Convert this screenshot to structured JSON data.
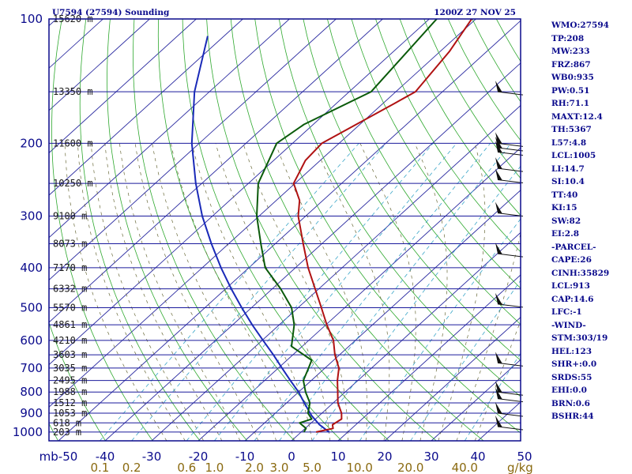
{
  "header": {
    "station": "U7594 (27594) Sounding",
    "time": "1200Z 27 NOV 25"
  },
  "stats": [
    "WMO:27594",
    "TP:208",
    "MW:233",
    "FRZ:867",
    "WB0:935",
    "PW:0.51",
    "RH:71.1",
    "MAXT:12.4",
    "TH:5367",
    "L57:4.8",
    "LCL:1005",
    "LI:14.7",
    "SI:10.4",
    "TT:40",
    "KI:15",
    "SW:82",
    "EI:2.8",
    "-PARCEL-",
    "CAPE:26",
    "CINH:35829",
    "LCL:913",
    "CAP:14.6",
    "LFC:-1",
    "-WIND-",
    "STM:303/19",
    "HEL:123",
    "SHR+:0.0",
    "SRDS:55",
    "EHI:0.0",
    "BRN:0.6",
    "BSHR:44"
  ],
  "colors": {
    "axis": "#0a0a8c",
    "isobar": "#1a1a9c",
    "temperature": "#b01212",
    "dewpoint": "#0a5a0a",
    "parcel": "#1a2ab8",
    "dry_adiabat": "#2ea82e",
    "isotherm": "#2a2aa0",
    "mixing_ratio": "#3aa6c8",
    "moist_adiabat": "#6a6a3a",
    "mixing_label": "#8a6a10"
  },
  "chart_data": {
    "type": "skew-t",
    "y_axis": {
      "scale": "log-pressure",
      "unit": "mb",
      "ticks": [
        100,
        200,
        300,
        400,
        500,
        600,
        700,
        800,
        900,
        1000
      ]
    },
    "x_axis": {
      "unit": "C",
      "ticks": [
        -50,
        -40,
        -30,
        -20,
        -10,
        0,
        10,
        20,
        30,
        40,
        50
      ],
      "tick_labels": [
        "mb-50",
        "-40",
        "-30",
        "-20",
        "-10",
        "0",
        "10",
        "20",
        "30",
        "40",
        "50"
      ]
    },
    "mixing_ratio_labels": {
      "unit": "g/kg",
      "labels": [
        "0.1",
        "0.2",
        "0.6",
        "1.0",
        "2.0",
        "3.0",
        "5.0",
        "10.0",
        "20.0",
        "40.0"
      ]
    },
    "heights": [
      {
        "p": 100,
        "label": "15620 m"
      },
      {
        "p": 150,
        "label": "13350 m"
      },
      {
        "p": 200,
        "label": "11600 m"
      },
      {
        "p": 250,
        "label": "10250 m"
      },
      {
        "p": 300,
        "label": "9100 m"
      },
      {
        "p": 350,
        "label": "8073 m"
      },
      {
        "p": 400,
        "label": "7170 m"
      },
      {
        "p": 450,
        "label": "6332 m"
      },
      {
        "p": 500,
        "label": "5570 m"
      },
      {
        "p": 550,
        "label": "4861 m"
      },
      {
        "p": 600,
        "label": "4210 m"
      },
      {
        "p": 650,
        "label": "3603 m"
      },
      {
        "p": 700,
        "label": "3035 m"
      },
      {
        "p": 750,
        "label": "2495 m"
      },
      {
        "p": 800,
        "label": "1988 m"
      },
      {
        "p": 850,
        "label": "1512 m"
      },
      {
        "p": 900,
        "label": "1053 m"
      },
      {
        "p": 950,
        "label": "618 m"
      },
      {
        "p": 1000,
        "label": "203 m"
      }
    ],
    "temperature": [
      {
        "p": 1000,
        "t": 3.2
      },
      {
        "p": 980,
        "t": 6.0
      },
      {
        "p": 960,
        "t": 5.0
      },
      {
        "p": 930,
        "t": 5.6
      },
      {
        "p": 900,
        "t": 4.2
      },
      {
        "p": 850,
        "t": 1.0
      },
      {
        "p": 800,
        "t": -1.6
      },
      {
        "p": 750,
        "t": -4.4
      },
      {
        "p": 700,
        "t": -7.0
      },
      {
        "p": 650,
        "t": -11.0
      },
      {
        "p": 600,
        "t": -14.7
      },
      {
        "p": 550,
        "t": -19.8
      },
      {
        "p": 500,
        "t": -25.0
      },
      {
        "p": 450,
        "t": -30.8
      },
      {
        "p": 400,
        "t": -37.3
      },
      {
        "p": 350,
        "t": -44.0
      },
      {
        "p": 300,
        "t": -51.6
      },
      {
        "p": 275,
        "t": -55.0
      },
      {
        "p": 250,
        "t": -60.3
      },
      {
        "p": 220,
        "t": -63.2
      },
      {
        "p": 200,
        "t": -63.7
      },
      {
        "p": 160,
        "t": -57.5
      },
      {
        "p": 150,
        "t": -55.8
      },
      {
        "p": 120,
        "t": -58.0
      },
      {
        "p": 100,
        "t": -60.9
      }
    ],
    "dewpoint": [
      {
        "p": 1000,
        "t": 0.6
      },
      {
        "p": 980,
        "t": 0.2
      },
      {
        "p": 950,
        "t": -2.5
      },
      {
        "p": 930,
        "t": -0.8
      },
      {
        "p": 900,
        "t": -3.0
      },
      {
        "p": 850,
        "t": -5.0
      },
      {
        "p": 800,
        "t": -8.5
      },
      {
        "p": 750,
        "t": -11.7
      },
      {
        "p": 700,
        "t": -13.5
      },
      {
        "p": 670,
        "t": -14.7
      },
      {
        "p": 620,
        "t": -22.3
      },
      {
        "p": 550,
        "t": -26.8
      },
      {
        "p": 500,
        "t": -31.4
      },
      {
        "p": 450,
        "t": -38.2
      },
      {
        "p": 400,
        "t": -46.5
      },
      {
        "p": 350,
        "t": -53.1
      },
      {
        "p": 300,
        "t": -60.5
      },
      {
        "p": 250,
        "t": -67.9
      },
      {
        "p": 200,
        "t": -73.4
      },
      {
        "p": 180,
        "t": -72.0
      },
      {
        "p": 150,
        "t": -65.3
      },
      {
        "p": 100,
        "t": -68.4
      }
    ],
    "parcel": [
      {
        "p": 1000,
        "t": 6.0
      },
      {
        "p": 960,
        "t": 2.2
      },
      {
        "p": 913,
        "t": -1.6
      },
      {
        "p": 850,
        "t": -6.2
      },
      {
        "p": 800,
        "t": -10.0
      },
      {
        "p": 750,
        "t": -14.5
      },
      {
        "p": 700,
        "t": -19.2
      },
      {
        "p": 650,
        "t": -24.2
      },
      {
        "p": 600,
        "t": -29.8
      },
      {
        "p": 550,
        "t": -35.8
      },
      {
        "p": 500,
        "t": -42.1
      },
      {
        "p": 450,
        "t": -48.8
      },
      {
        "p": 400,
        "t": -56.0
      },
      {
        "p": 350,
        "t": -63.7
      },
      {
        "p": 300,
        "t": -72.2
      },
      {
        "p": 250,
        "t": -81.3
      },
      {
        "p": 200,
        "t": -91.6
      },
      {
        "p": 150,
        "t": -103.2
      },
      {
        "p": 110,
        "t": -113.5
      }
    ],
    "winds": [
      {
        "p": 150
      },
      {
        "p": 200
      },
      {
        "p": 205
      },
      {
        "p": 210
      },
      {
        "p": 230
      },
      {
        "p": 245
      },
      {
        "p": 295
      },
      {
        "p": 370
      },
      {
        "p": 490
      },
      {
        "p": 680
      },
      {
        "p": 800
      },
      {
        "p": 830
      },
      {
        "p": 900
      },
      {
        "p": 970
      }
    ]
  }
}
